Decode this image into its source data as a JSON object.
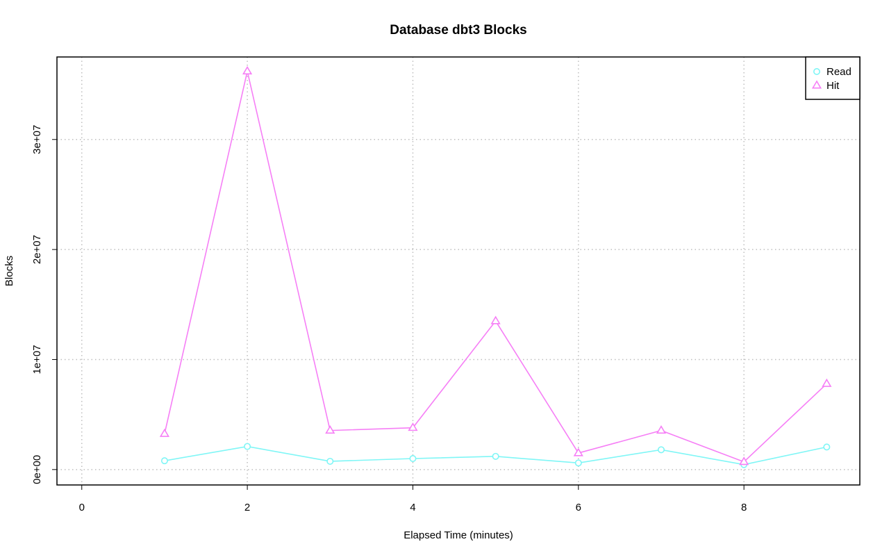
{
  "chart_data": {
    "type": "line",
    "title": "Database dbt3 Blocks",
    "xlabel": "Elapsed Time (minutes)",
    "ylabel": "Blocks",
    "xlim": [
      -0.3,
      9.4
    ],
    "ylim": [
      -1400000,
      37500000
    ],
    "x_ticks": [
      0,
      2,
      4,
      6,
      8
    ],
    "x_tick_labels": [
      "0",
      "2",
      "4",
      "6",
      "8"
    ],
    "y_ticks": [
      0,
      10000000,
      20000000,
      30000000
    ],
    "y_tick_labels": [
      "0e+00",
      "1e+07",
      "2e+07",
      "3e+07"
    ],
    "grid": true,
    "legend_position": "top-right",
    "x": [
      1,
      2,
      3,
      4,
      5,
      6,
      7,
      8,
      9
    ],
    "series": [
      {
        "name": "Read",
        "color": "#7ff6f6",
        "marker": "circle",
        "values": [
          800000,
          2100000,
          750000,
          1000000,
          1200000,
          600000,
          1800000,
          450000,
          2050000
        ]
      },
      {
        "name": "Hit",
        "color": "#f67ff6",
        "marker": "triangle",
        "values": [
          3250000,
          36200000,
          3550000,
          3800000,
          13500000,
          1500000,
          3550000,
          700000,
          7800000
        ]
      }
    ]
  }
}
